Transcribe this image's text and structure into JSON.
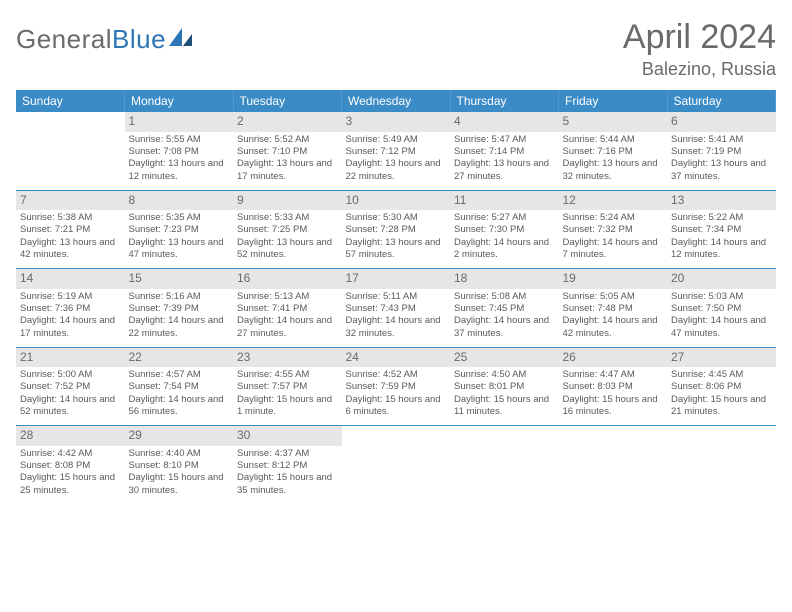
{
  "brand": {
    "part1": "General",
    "part2": "Blue"
  },
  "title": "April 2024",
  "location": "Balezino, Russia",
  "colors": {
    "header_bg": "#3b8bc6",
    "header_text": "#ffffff",
    "daynum_bg": "#e6e6e6",
    "text": "#5a5a5a",
    "rule": "#3b8bc6",
    "brand_gray": "#6a6a6a",
    "brand_blue": "#2e75b6"
  },
  "weekdays": [
    "Sunday",
    "Monday",
    "Tuesday",
    "Wednesday",
    "Thursday",
    "Friday",
    "Saturday"
  ],
  "weeks": [
    [
      {
        "n": "",
        "sr": "",
        "ss": "",
        "dl": ""
      },
      {
        "n": "1",
        "sr": "Sunrise: 5:55 AM",
        "ss": "Sunset: 7:08 PM",
        "dl": "Daylight: 13 hours and 12 minutes."
      },
      {
        "n": "2",
        "sr": "Sunrise: 5:52 AM",
        "ss": "Sunset: 7:10 PM",
        "dl": "Daylight: 13 hours and 17 minutes."
      },
      {
        "n": "3",
        "sr": "Sunrise: 5:49 AM",
        "ss": "Sunset: 7:12 PM",
        "dl": "Daylight: 13 hours and 22 minutes."
      },
      {
        "n": "4",
        "sr": "Sunrise: 5:47 AM",
        "ss": "Sunset: 7:14 PM",
        "dl": "Daylight: 13 hours and 27 minutes."
      },
      {
        "n": "5",
        "sr": "Sunrise: 5:44 AM",
        "ss": "Sunset: 7:16 PM",
        "dl": "Daylight: 13 hours and 32 minutes."
      },
      {
        "n": "6",
        "sr": "Sunrise: 5:41 AM",
        "ss": "Sunset: 7:19 PM",
        "dl": "Daylight: 13 hours and 37 minutes."
      }
    ],
    [
      {
        "n": "7",
        "sr": "Sunrise: 5:38 AM",
        "ss": "Sunset: 7:21 PM",
        "dl": "Daylight: 13 hours and 42 minutes."
      },
      {
        "n": "8",
        "sr": "Sunrise: 5:35 AM",
        "ss": "Sunset: 7:23 PM",
        "dl": "Daylight: 13 hours and 47 minutes."
      },
      {
        "n": "9",
        "sr": "Sunrise: 5:33 AM",
        "ss": "Sunset: 7:25 PM",
        "dl": "Daylight: 13 hours and 52 minutes."
      },
      {
        "n": "10",
        "sr": "Sunrise: 5:30 AM",
        "ss": "Sunset: 7:28 PM",
        "dl": "Daylight: 13 hours and 57 minutes."
      },
      {
        "n": "11",
        "sr": "Sunrise: 5:27 AM",
        "ss": "Sunset: 7:30 PM",
        "dl": "Daylight: 14 hours and 2 minutes."
      },
      {
        "n": "12",
        "sr": "Sunrise: 5:24 AM",
        "ss": "Sunset: 7:32 PM",
        "dl": "Daylight: 14 hours and 7 minutes."
      },
      {
        "n": "13",
        "sr": "Sunrise: 5:22 AM",
        "ss": "Sunset: 7:34 PM",
        "dl": "Daylight: 14 hours and 12 minutes."
      }
    ],
    [
      {
        "n": "14",
        "sr": "Sunrise: 5:19 AM",
        "ss": "Sunset: 7:36 PM",
        "dl": "Daylight: 14 hours and 17 minutes."
      },
      {
        "n": "15",
        "sr": "Sunrise: 5:16 AM",
        "ss": "Sunset: 7:39 PM",
        "dl": "Daylight: 14 hours and 22 minutes."
      },
      {
        "n": "16",
        "sr": "Sunrise: 5:13 AM",
        "ss": "Sunset: 7:41 PM",
        "dl": "Daylight: 14 hours and 27 minutes."
      },
      {
        "n": "17",
        "sr": "Sunrise: 5:11 AM",
        "ss": "Sunset: 7:43 PM",
        "dl": "Daylight: 14 hours and 32 minutes."
      },
      {
        "n": "18",
        "sr": "Sunrise: 5:08 AM",
        "ss": "Sunset: 7:45 PM",
        "dl": "Daylight: 14 hours and 37 minutes."
      },
      {
        "n": "19",
        "sr": "Sunrise: 5:05 AM",
        "ss": "Sunset: 7:48 PM",
        "dl": "Daylight: 14 hours and 42 minutes."
      },
      {
        "n": "20",
        "sr": "Sunrise: 5:03 AM",
        "ss": "Sunset: 7:50 PM",
        "dl": "Daylight: 14 hours and 47 minutes."
      }
    ],
    [
      {
        "n": "21",
        "sr": "Sunrise: 5:00 AM",
        "ss": "Sunset: 7:52 PM",
        "dl": "Daylight: 14 hours and 52 minutes."
      },
      {
        "n": "22",
        "sr": "Sunrise: 4:57 AM",
        "ss": "Sunset: 7:54 PM",
        "dl": "Daylight: 14 hours and 56 minutes."
      },
      {
        "n": "23",
        "sr": "Sunrise: 4:55 AM",
        "ss": "Sunset: 7:57 PM",
        "dl": "Daylight: 15 hours and 1 minute."
      },
      {
        "n": "24",
        "sr": "Sunrise: 4:52 AM",
        "ss": "Sunset: 7:59 PM",
        "dl": "Daylight: 15 hours and 6 minutes."
      },
      {
        "n": "25",
        "sr": "Sunrise: 4:50 AM",
        "ss": "Sunset: 8:01 PM",
        "dl": "Daylight: 15 hours and 11 minutes."
      },
      {
        "n": "26",
        "sr": "Sunrise: 4:47 AM",
        "ss": "Sunset: 8:03 PM",
        "dl": "Daylight: 15 hours and 16 minutes."
      },
      {
        "n": "27",
        "sr": "Sunrise: 4:45 AM",
        "ss": "Sunset: 8:06 PM",
        "dl": "Daylight: 15 hours and 21 minutes."
      }
    ],
    [
      {
        "n": "28",
        "sr": "Sunrise: 4:42 AM",
        "ss": "Sunset: 8:08 PM",
        "dl": "Daylight: 15 hours and 25 minutes."
      },
      {
        "n": "29",
        "sr": "Sunrise: 4:40 AM",
        "ss": "Sunset: 8:10 PM",
        "dl": "Daylight: 15 hours and 30 minutes."
      },
      {
        "n": "30",
        "sr": "Sunrise: 4:37 AM",
        "ss": "Sunset: 8:12 PM",
        "dl": "Daylight: 15 hours and 35 minutes."
      },
      {
        "n": "",
        "sr": "",
        "ss": "",
        "dl": ""
      },
      {
        "n": "",
        "sr": "",
        "ss": "",
        "dl": ""
      },
      {
        "n": "",
        "sr": "",
        "ss": "",
        "dl": ""
      },
      {
        "n": "",
        "sr": "",
        "ss": "",
        "dl": ""
      }
    ]
  ]
}
